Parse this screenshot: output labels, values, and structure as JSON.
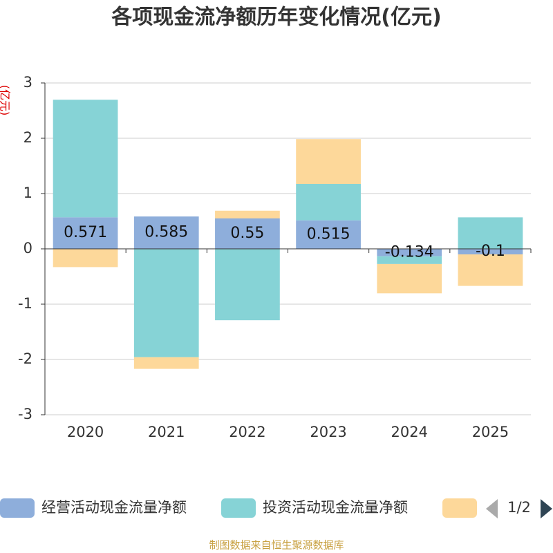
{
  "chart_data": {
    "type": "bar",
    "stacked": true,
    "title": "各项现金流净额历年变化情况(亿元)",
    "y_label": "(亿元)",
    "categories": [
      "2020",
      "2021",
      "2022",
      "2023",
      "2024",
      "2025"
    ],
    "series": [
      {
        "name": "经营活动现金流量净额",
        "color": "#8eaedb",
        "values": [
          0.571,
          0.585,
          0.55,
          0.515,
          -0.134,
          -0.1
        ]
      },
      {
        "name": "投资活动现金流量净额",
        "color": "#86d3d6",
        "values": [
          2.125,
          -1.96,
          -1.29,
          0.66,
          -0.14,
          0.57
        ]
      },
      {
        "color": "#fdd89a",
        "values": [
          -0.33,
          -0.21,
          0.14,
          0.81,
          -0.53,
          -0.57
        ]
      }
    ],
    "label_series": 0,
    "ylim": [
      -3,
      3
    ],
    "yticks": [
      -3,
      -2,
      -1,
      0,
      1,
      2,
      3
    ],
    "grid": true,
    "legend_page": "1/2",
    "source": "制图数据来自恒生聚源数据库"
  }
}
